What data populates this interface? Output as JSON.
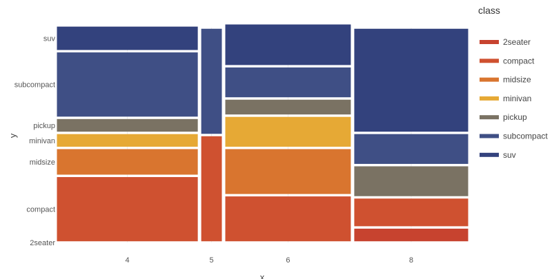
{
  "chart_data": {
    "type": "mosaic",
    "xlabel": "x",
    "ylabel": "y",
    "x_categories": [
      "4",
      "5",
      "6",
      "8"
    ],
    "y_categories": [
      "2seater",
      "compact",
      "midsize",
      "minivan",
      "pickup",
      "subcompact",
      "suv"
    ],
    "x_widths": [
      0.348,
      0.058,
      0.311,
      0.283
    ],
    "y_tick_labels": [
      "suv",
      "subcompact",
      "pickup",
      "minivan",
      "midsize",
      "compact",
      "2seater"
    ],
    "columns": [
      {
        "x": "4",
        "shares": {
          "2seater": 0.0,
          "compact": 0.31,
          "midsize": 0.13,
          "minivan": 0.07,
          "pickup": 0.07,
          "subcompact": 0.31,
          "suv": 0.12
        }
      },
      {
        "x": "5",
        "shares": {
          "2seater": 0.0,
          "compact": 0.5,
          "midsize": 0.0,
          "minivan": 0.0,
          "pickup": 0.0,
          "subcompact": 0.5,
          "suv": 0.0
        }
      },
      {
        "x": "6",
        "shares": {
          "2seater": 0.0,
          "compact": 0.22,
          "midsize": 0.22,
          "minivan": 0.15,
          "pickup": 0.08,
          "subcompact": 0.15,
          "suv": 0.2
        }
      },
      {
        "x": "8",
        "shares": {
          "2seater": 0.07,
          "compact": 0.14,
          "midsize": 0.0,
          "minivan": 0.0,
          "pickup": 0.15,
          "subcompact": 0.15,
          "suv": 0.49
        }
      }
    ],
    "legend": {
      "title": "class",
      "position": "right",
      "entries": [
        "2seater",
        "compact",
        "midsize",
        "minivan",
        "pickup",
        "subcompact",
        "suv"
      ]
    },
    "colors": {
      "2seater": "#c7432f",
      "compact": "#cf5130",
      "midsize": "#d9752f",
      "minivan": "#e6a935",
      "pickup": "#7a7263",
      "subcompact": "#3f4f85",
      "suv": "#33427d"
    },
    "grid": true
  }
}
